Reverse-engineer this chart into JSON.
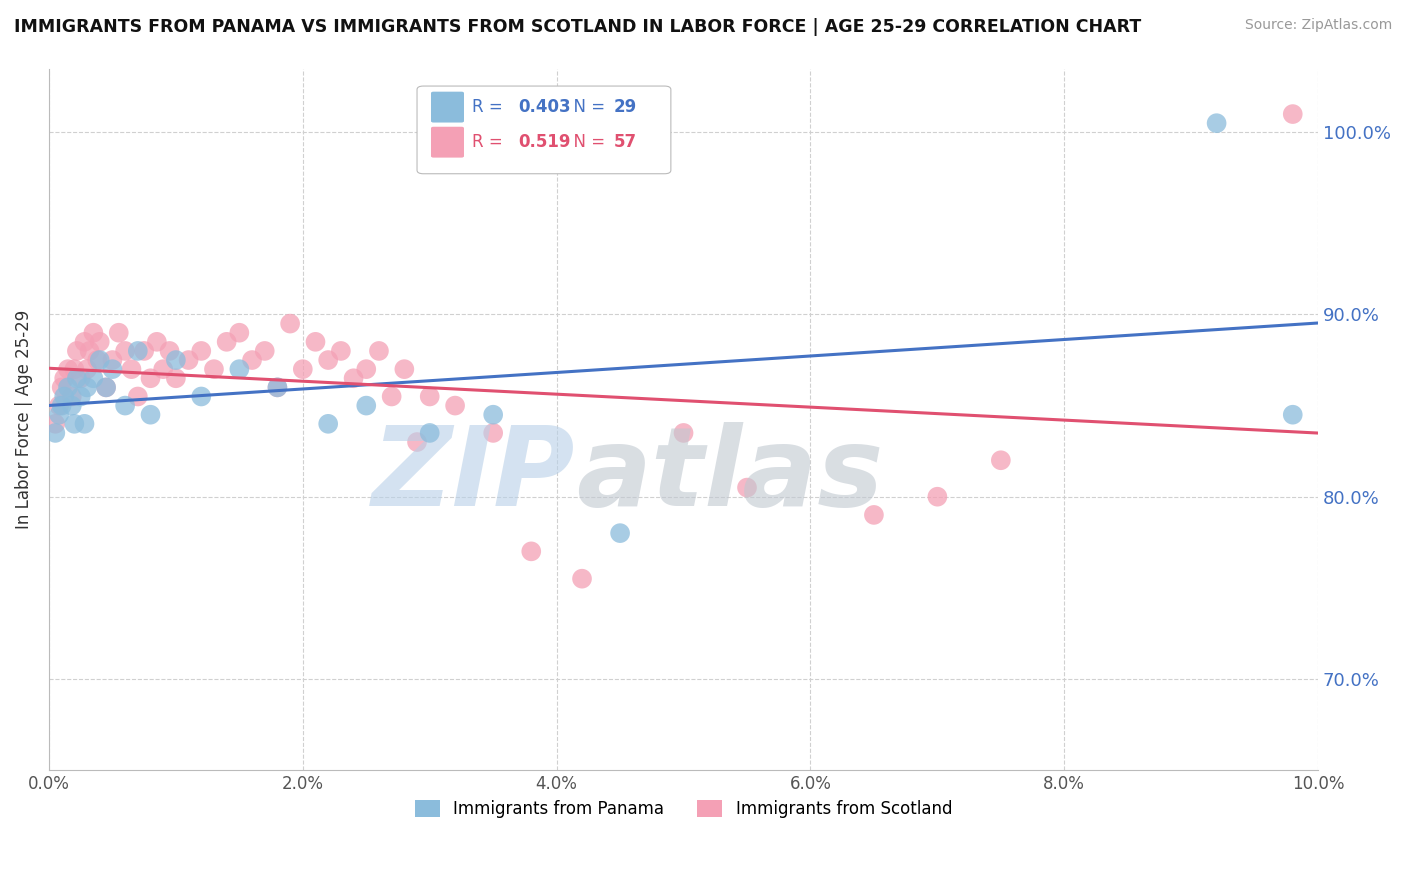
{
  "title": "IMMIGRANTS FROM PANAMA VS IMMIGRANTS FROM SCOTLAND IN LABOR FORCE | AGE 25-29 CORRELATION CHART",
  "source": "Source: ZipAtlas.com",
  "ylabel_label": "In Labor Force | Age 25-29",
  "legend_label1": "Immigrants from Panama",
  "legend_label2": "Immigrants from Scotland",
  "R_panama": 0.403,
  "N_panama": 29,
  "R_scotland": 0.519,
  "N_scotland": 57,
  "color_panama": "#8bbcdc",
  "color_scotland": "#f4a0b5",
  "line_color_panama": "#4472c4",
  "line_color_scotland": "#e05070",
  "xlim": [
    0.0,
    10.0
  ],
  "ylim": [
    65.0,
    103.5
  ],
  "x_ticks": [
    0.0,
    2.0,
    4.0,
    6.0,
    8.0,
    10.0
  ],
  "y_ticks": [
    70.0,
    80.0,
    90.0,
    100.0
  ],
  "panama_x": [
    0.05,
    0.08,
    0.1,
    0.12,
    0.15,
    0.18,
    0.2,
    0.22,
    0.25,
    0.28,
    0.3,
    0.35,
    0.4,
    0.45,
    0.5,
    0.6,
    0.7,
    0.8,
    1.0,
    1.2,
    1.5,
    1.8,
    2.2,
    2.5,
    3.0,
    3.5,
    4.5,
    9.2,
    9.8
  ],
  "panama_y": [
    83.5,
    84.5,
    85.0,
    85.5,
    86.0,
    85.0,
    84.0,
    86.5,
    85.5,
    84.0,
    86.0,
    86.5,
    87.5,
    86.0,
    87.0,
    85.0,
    88.0,
    84.5,
    87.5,
    85.5,
    87.0,
    86.0,
    84.0,
    85.0,
    83.5,
    84.5,
    78.0,
    100.5,
    84.5
  ],
  "scotland_x": [
    0.05,
    0.08,
    0.1,
    0.12,
    0.15,
    0.18,
    0.2,
    0.22,
    0.25,
    0.28,
    0.3,
    0.32,
    0.35,
    0.38,
    0.4,
    0.45,
    0.5,
    0.55,
    0.6,
    0.65,
    0.7,
    0.75,
    0.8,
    0.85,
    0.9,
    0.95,
    1.0,
    1.1,
    1.2,
    1.3,
    1.4,
    1.5,
    1.6,
    1.7,
    1.8,
    1.9,
    2.0,
    2.1,
    2.2,
    2.3,
    2.4,
    2.5,
    2.6,
    2.7,
    2.8,
    2.9,
    3.0,
    3.2,
    3.5,
    3.8,
    4.2,
    5.0,
    5.5,
    6.5,
    7.0,
    7.5,
    9.8
  ],
  "scotland_y": [
    84.0,
    85.0,
    86.0,
    86.5,
    87.0,
    85.5,
    87.0,
    88.0,
    86.5,
    88.5,
    87.0,
    88.0,
    89.0,
    87.5,
    88.5,
    86.0,
    87.5,
    89.0,
    88.0,
    87.0,
    85.5,
    88.0,
    86.5,
    88.5,
    87.0,
    88.0,
    86.5,
    87.5,
    88.0,
    87.0,
    88.5,
    89.0,
    87.5,
    88.0,
    86.0,
    89.5,
    87.0,
    88.5,
    87.5,
    88.0,
    86.5,
    87.0,
    88.0,
    85.5,
    87.0,
    83.0,
    85.5,
    85.0,
    83.5,
    77.0,
    75.5,
    83.5,
    80.5,
    79.0,
    80.0,
    82.0,
    101.0
  ],
  "background_color": "#ffffff",
  "grid_color": "#d0d0d0",
  "watermark_zip_color": "#b8d0e8",
  "watermark_atlas_color": "#c0c8d0"
}
